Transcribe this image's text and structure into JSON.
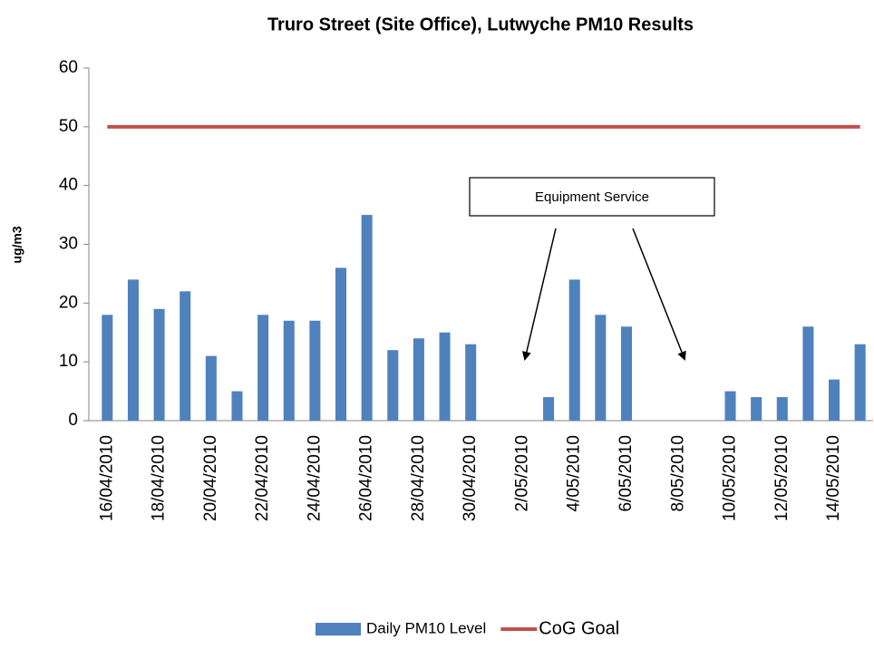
{
  "chart_data": {
    "type": "bar",
    "title": "Truro Street (Site Office), Lutwyche PM10 Results",
    "y_label": "ug/m3",
    "annotation": "Equipment Service",
    "categories": [
      "16/04/2010",
      null,
      "18/04/2010",
      null,
      "20/04/2010",
      null,
      "22/04/2010",
      null,
      "24/04/2010",
      null,
      "26/04/2010",
      null,
      "28/04/2010",
      null,
      "30/04/2010",
      null,
      "2/05/2010",
      null,
      "4/05/2010",
      null,
      "6/05/2010",
      null,
      "8/05/2010",
      null,
      "10/05/2010",
      null,
      "12/05/2010",
      null,
      "14/05/2010",
      null
    ],
    "series": [
      {
        "name": "Daily PM10 Level",
        "type": "bar",
        "color": "#4f81bd",
        "values": [
          18,
          24,
          19,
          22,
          11,
          5,
          18,
          17,
          17,
          26,
          35,
          12,
          14,
          15,
          13,
          null,
          null,
          4,
          24,
          18,
          16,
          null,
          null,
          null,
          5,
          4,
          4,
          16,
          7,
          13
        ]
      },
      {
        "name": "CoG Goal",
        "type": "line",
        "color": "#c0504d",
        "values": [
          50,
          50,
          50,
          50,
          50,
          50,
          50,
          50,
          50,
          50,
          50,
          50,
          50,
          50,
          50,
          50,
          50,
          50,
          50,
          50,
          50,
          50,
          50,
          50,
          50,
          50,
          50,
          50,
          50,
          50
        ]
      }
    ],
    "ylim": [
      0,
      60
    ],
    "yticks": [
      0,
      10,
      20,
      30,
      40,
      50,
      60
    ],
    "grid": false,
    "legend": "bottom"
  }
}
